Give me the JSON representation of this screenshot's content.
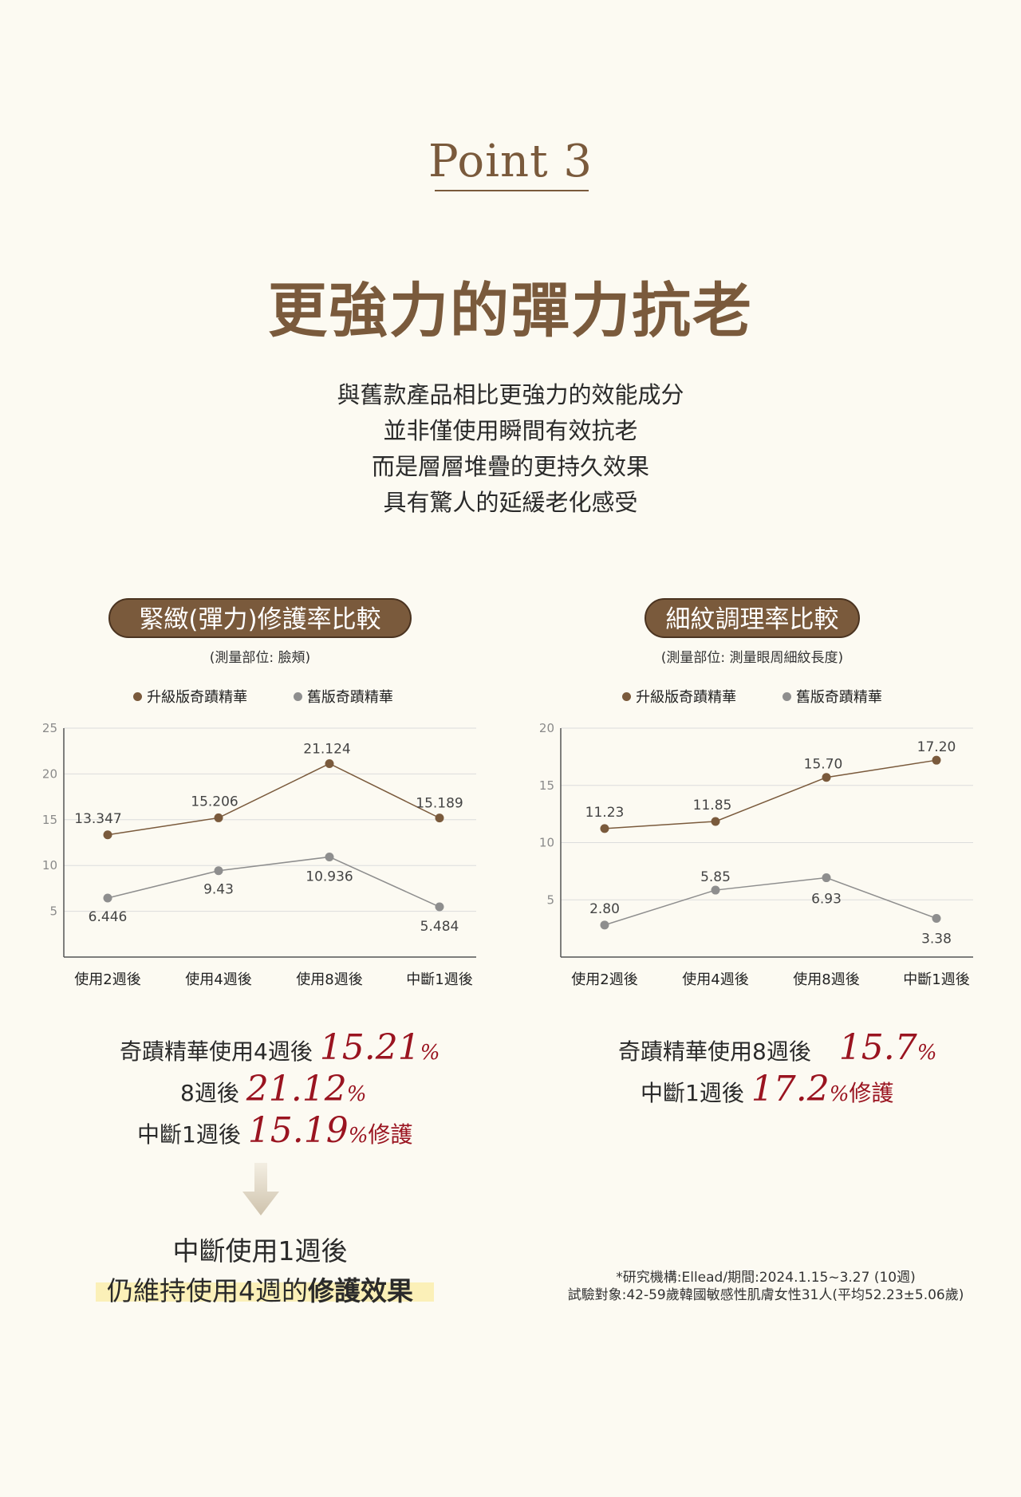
{
  "header": {
    "point": "Point 3",
    "title": "更強力的彈力抗老",
    "description": [
      "與舊款產品相比更強力的效能成分",
      "並非僅使用瞬間有效抗老",
      "而是層層堆疊的更持久效果",
      "具有驚人的延緩老化感受"
    ]
  },
  "colors": {
    "brown": "#7a5a3c",
    "upgraded": "#7a5a3c",
    "old": "#8e8e8e",
    "red": "#9a1420"
  },
  "chart_left": {
    "pill": "緊緻(彈力)修護率比較",
    "measure": "(測量部位: 臉頰)",
    "legend": [
      "升級版奇蹟精華",
      "舊版奇蹟精華"
    ]
  },
  "chart_right": {
    "pill": "細紋調理率比較",
    "measure": "(測量部位: 測量眼周細紋長度)",
    "legend": [
      "升級版奇蹟精華",
      "舊版奇蹟精華"
    ]
  },
  "chart_data": [
    {
      "type": "line",
      "categories": [
        "使用2週後",
        "使用4週後",
        "使用8週後",
        "中斷1週後"
      ],
      "ylim": [
        0,
        25
      ],
      "yticks": [
        "5",
        "10",
        "15",
        "20",
        "25"
      ],
      "grid": true,
      "legend_position": "top",
      "series": [
        {
          "name": "升級版奇蹟精華",
          "values": [
            13.347,
            15.206,
            21.124,
            15.189
          ],
          "labels": [
            "13.347",
            "15.206",
            "21.124",
            "15.189"
          ],
          "color": "#7a5a3c"
        },
        {
          "name": "舊版奇蹟精華",
          "values": [
            6.446,
            9.43,
            10.936,
            5.484
          ],
          "labels": [
            "6.446",
            "9.43",
            "10.936",
            "5.484"
          ],
          "color": "#8e8e8e"
        }
      ]
    },
    {
      "type": "line",
      "categories": [
        "使用2週後",
        "使用4週後",
        "使用8週後",
        "中斷1週後"
      ],
      "ylim": [
        0,
        20
      ],
      "yticks": [
        "5",
        "10",
        "15",
        "20"
      ],
      "grid": true,
      "legend_position": "top",
      "series": [
        {
          "name": "升級版奇蹟精華",
          "values": [
            11.23,
            11.85,
            15.7,
            17.2
          ],
          "labels": [
            "11.23",
            "11.85",
            "15.70",
            "17.20"
          ],
          "color": "#7a5a3c"
        },
        {
          "name": "舊版奇蹟精華",
          "values": [
            2.8,
            5.85,
            6.93,
            3.38
          ],
          "labels": [
            "2.80",
            "5.85",
            "6.93",
            "3.38"
          ],
          "color": "#8e8e8e"
        }
      ]
    }
  ],
  "stats_left": {
    "l1_text": "奇蹟精華使用4週後 ",
    "l1_num": "15.21",
    "l1_pct": "%",
    "l2_text": "8週後 ",
    "l2_num": "21.12",
    "l2_pct": "%",
    "l3_text": "中斷1週後 ",
    "l3_num": "15.19",
    "l3_pct": "%",
    "l3_suffix": "修護"
  },
  "stats_right": {
    "l1_text": "奇蹟精華使用8週後 ",
    "l1_num": "15.7",
    "l1_pct": "%",
    "l2_text": "中斷1週後 ",
    "l2_num": "17.2",
    "l2_pct": "%",
    "l2_suffix": "修護"
  },
  "conclusion": {
    "line1": "中斷使用1週後",
    "line2_normal": "仍維持使用4週的",
    "line2_bold": "修護效果"
  },
  "footnote": {
    "line1": "*研究機構:Ellead/期間:2024.1.15~3.27 (10週)",
    "line2": "試驗對象:42-59歲韓國敏感性肌膚女性31人(平均52.23±5.06歲)"
  }
}
